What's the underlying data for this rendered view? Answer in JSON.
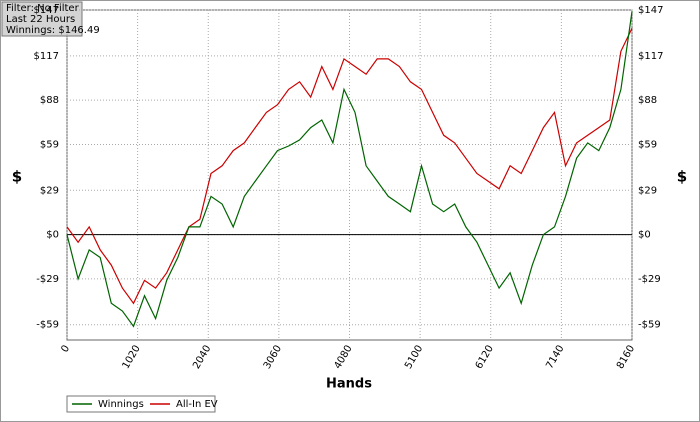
{
  "chart_data": {
    "type": "line",
    "annotations": [
      "Filter: No Filter",
      "Last  22 Hours",
      "Winnings: $146.49"
    ],
    "xlabel": "Hands",
    "ylabel": "$",
    "y2label": "$",
    "xlim": [
      0,
      8160
    ],
    "xticks": [
      0,
      1020,
      2040,
      3060,
      4080,
      5100,
      6120,
      7140,
      8160
    ],
    "ylim": [
      -69,
      147
    ],
    "yticks": [
      {
        "value": 147,
        "label": "$147"
      },
      {
        "value": 117,
        "label": "$117"
      },
      {
        "value": 88,
        "label": "$88"
      },
      {
        "value": 59,
        "label": "$59"
      },
      {
        "value": 29,
        "label": "$29"
      },
      {
        "value": 0,
        "label": "$0"
      },
      {
        "value": -29,
        "label": "-$29"
      },
      {
        "value": -59,
        "label": "-$59"
      }
    ],
    "grid": true,
    "legend": "bottom-left",
    "x": [
      0,
      160,
      320,
      480,
      640,
      800,
      960,
      1120,
      1280,
      1440,
      1600,
      1760,
      1920,
      2080,
      2240,
      2400,
      2560,
      2720,
      2880,
      3040,
      3200,
      3360,
      3520,
      3680,
      3840,
      4000,
      4160,
      4320,
      4480,
      4640,
      4800,
      4960,
      5120,
      5280,
      5440,
      5600,
      5760,
      5920,
      6080,
      6240,
      6400,
      6560,
      6720,
      6880,
      7040,
      7200,
      7360,
      7520,
      7680,
      7840,
      8000,
      8160
    ],
    "series": [
      {
        "name": "Winnings",
        "color": "#006400",
        "values": [
          0,
          -29,
          -10,
          -15,
          -45,
          -50,
          -60,
          -40,
          -55,
          -30,
          -15,
          5,
          5,
          25,
          20,
          5,
          25,
          35,
          45,
          55,
          58,
          62,
          70,
          75,
          60,
          95,
          80,
          45,
          35,
          25,
          20,
          15,
          45,
          20,
          15,
          20,
          5,
          -5,
          -20,
          -35,
          -25,
          -45,
          -20,
          0,
          5,
          25,
          50,
          60,
          55,
          70,
          95,
          146
        ]
      },
      {
        "name": "All-In EV",
        "color": "#cc0000",
        "values": [
          5,
          -5,
          5,
          -10,
          -20,
          -35,
          -45,
          -30,
          -35,
          -25,
          -10,
          5,
          10,
          40,
          45,
          55,
          60,
          70,
          80,
          85,
          95,
          100,
          90,
          110,
          95,
          115,
          110,
          105,
          115,
          115,
          110,
          100,
          95,
          80,
          65,
          60,
          50,
          40,
          35,
          30,
          45,
          40,
          55,
          70,
          80,
          45,
          60,
          65,
          70,
          75,
          120,
          135
        ]
      }
    ]
  }
}
